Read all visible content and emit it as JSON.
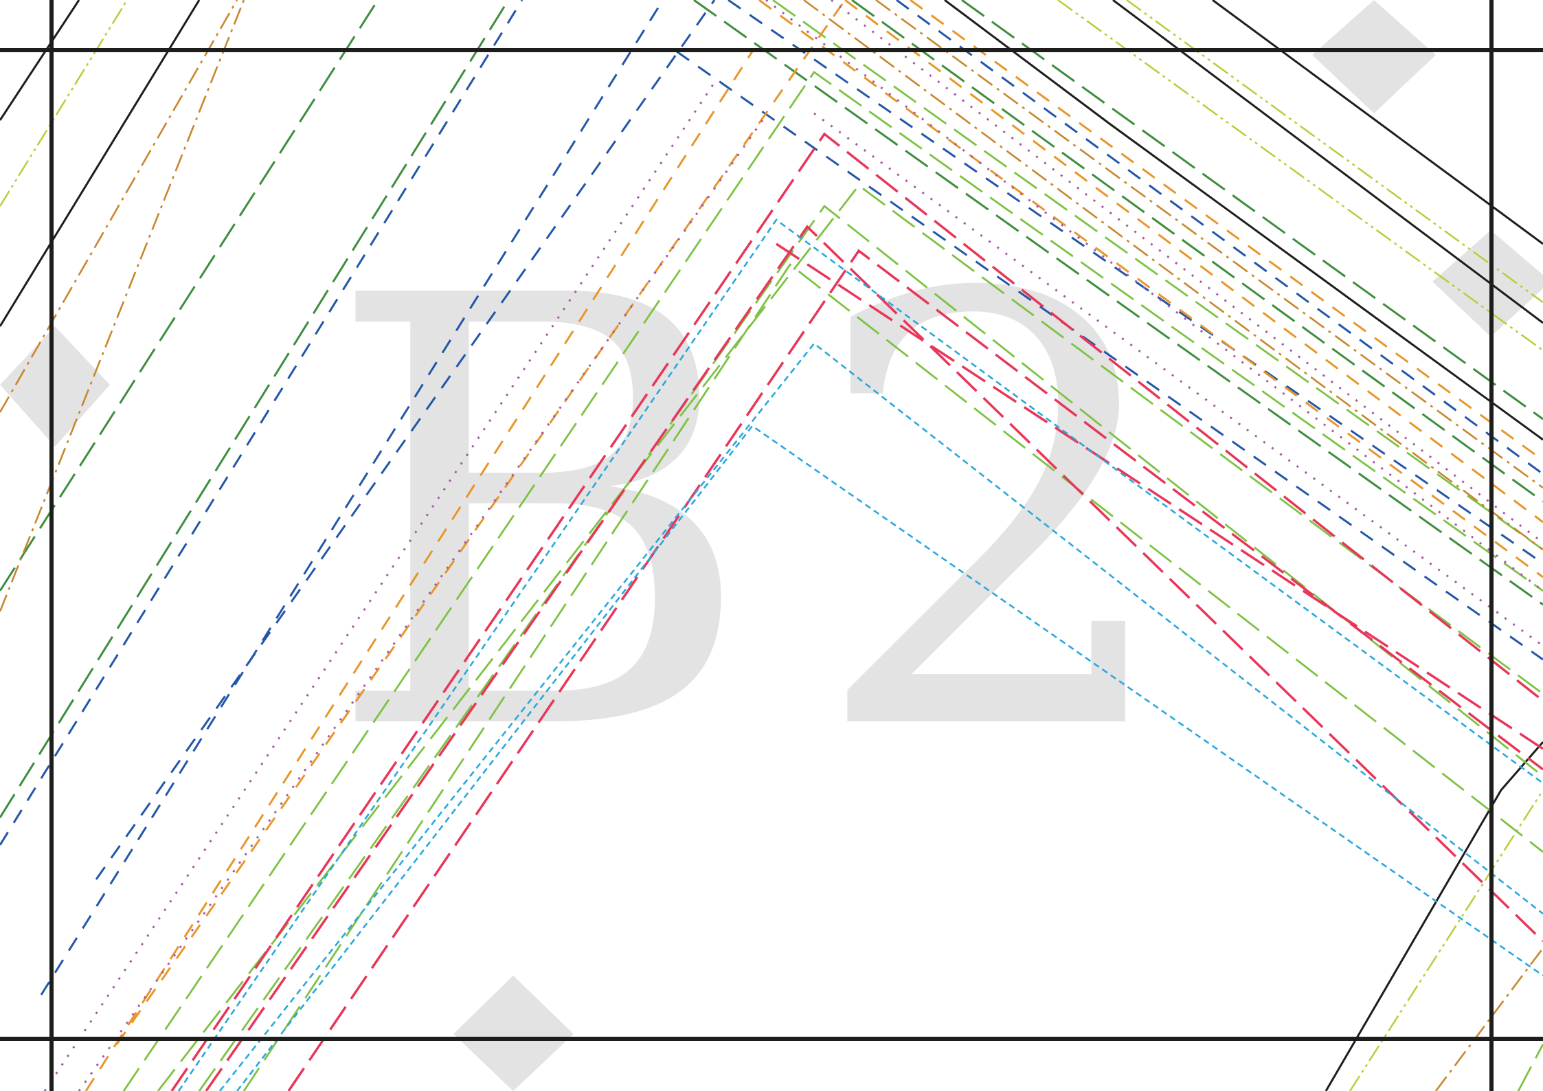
{
  "watermark": {
    "letter": "B",
    "digit": "2"
  },
  "palette": {
    "frame": "#1d1d1b",
    "watermark": "#e3e3e3",
    "black": "#1d1d1b",
    "yellow_green": "#b5cf3a",
    "dark_green": "#3e8d3e",
    "light_green": "#7dc242",
    "dark_blue": "#2356a8",
    "orange": "#e8962a",
    "brown_orange": "#c8862e",
    "purple": "#a65aa8",
    "red": "#e8365a",
    "cyan": "#2aa8dc"
  },
  "line_styles": [
    {
      "key": "black",
      "dash": "solid"
    },
    {
      "key": "yellow_green",
      "dash": "dash-dot-dot"
    },
    {
      "key": "dark_green",
      "dash": "long-dash"
    },
    {
      "key": "light_green",
      "dash": "long-dash"
    },
    {
      "key": "dark_blue",
      "dash": "dash"
    },
    {
      "key": "orange",
      "dash": "dash"
    },
    {
      "key": "brown_orange",
      "dash": "dash-dot"
    },
    {
      "key": "purple",
      "dash": "dot"
    },
    {
      "key": "red",
      "dash": "long-dash"
    },
    {
      "key": "cyan",
      "dash": "short-dash"
    }
  ]
}
